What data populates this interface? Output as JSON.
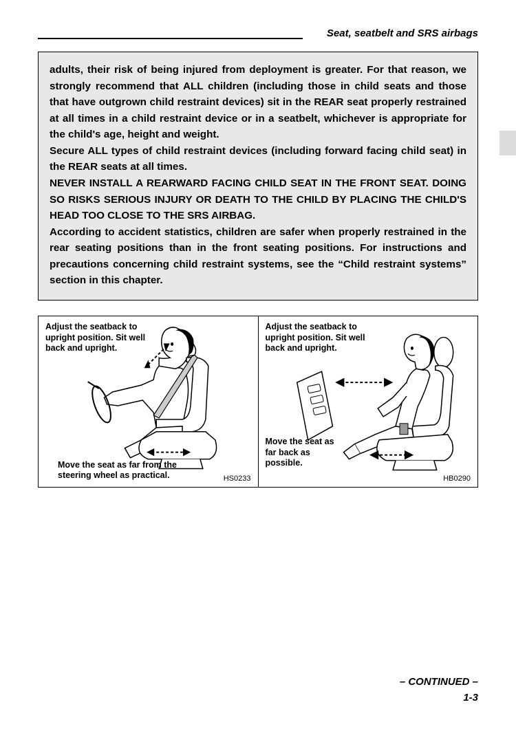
{
  "header": {
    "title": "Seat, seatbelt and SRS airbags"
  },
  "callout": {
    "text": "adults, their risk of being injured from deployment is greater. For that reason, we strongly recommend that ALL children (including those in child seats and those that have outgrown child restraint devices) sit in the REAR seat properly restrained at all times in a child restraint device or in a seatbelt, whichever is appropriate for the child's age, height and weight.\nSecure ALL types of child restraint devices (including forward facing child seat) in the REAR seats at all times.\nNEVER INSTALL A REARWARD FACING CHILD SEAT IN THE FRONT SEAT. DOING SO RISKS SERIOUS INJURY OR DEATH TO THE CHILD BY PLACING THE CHILD'S HEAD TOO CLOSE TO THE SRS AIRBAG.\nAccording to accident statistics, children are safer when properly restrained in the rear seating positions than in the front seating positions. For instructions and precautions concerning child restraint systems, see the “Child restraint systems” section in this chapter."
  },
  "figures": {
    "left": {
      "caption_top": "Adjust the seatback to upright position. Sit well back and upright.",
      "caption_bottom": "Move the seat as far from the steering wheel as practical.",
      "code": "HS0233"
    },
    "right": {
      "caption_top": "Adjust the seatback to upright position. Sit well back and upright.",
      "caption_bottom": "Move the seat as far back as possible.",
      "code": "HB0290"
    }
  },
  "footer": {
    "continued": "– CONTINUED –",
    "page": "1-3"
  },
  "colors": {
    "callout_bg": "#e8e8e8",
    "tab_bg": "#dcdcdc",
    "text": "#000000",
    "page_bg": "#ffffff"
  }
}
